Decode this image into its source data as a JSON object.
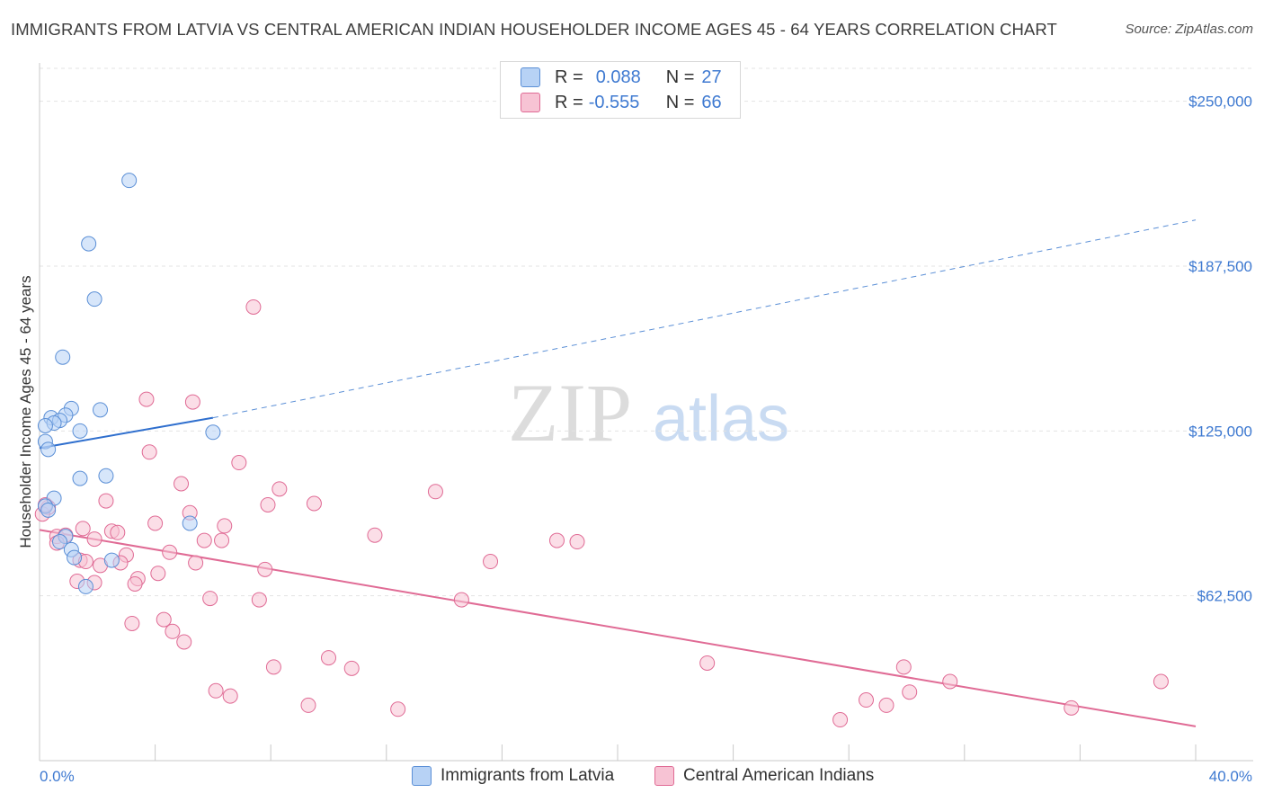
{
  "title": "IMMIGRANTS FROM LATVIA VS CENTRAL AMERICAN INDIAN HOUSEHOLDER INCOME AGES 45 - 64 YEARS CORRELATION CHART",
  "source": "Source: ZipAtlas.com",
  "watermark": {
    "zip": "ZIP",
    "atlas": "atlas"
  },
  "colors": {
    "blue": "#5b8fd6",
    "blue_fill": "#b7d2f5",
    "pink": "#e06b95",
    "pink_fill": "#f7c3d4",
    "axis_label": "#3f7ad1"
  },
  "legend_top": {
    "rows": [
      {
        "r_label": "R =",
        "r_value": "0.088",
        "n_label": "N =",
        "n_value": "27"
      },
      {
        "r_label": "R =",
        "r_value": "-0.555",
        "n_label": "N =",
        "n_value": "66"
      }
    ]
  },
  "legend_bottom": {
    "series1": "Immigrants from Latvia",
    "series2": "Central American Indians"
  },
  "chart_data": {
    "type": "scatter",
    "title": "IMMIGRANTS FROM LATVIA VS CENTRAL AMERICAN INDIAN HOUSEHOLDER INCOME AGES 45 - 64 YEARS CORRELATION CHART",
    "xlabel": "",
    "ylabel": "Householder Income Ages 45 - 64 years",
    "xlim": [
      0,
      40
    ],
    "ylim": [
      0,
      262500
    ],
    "x_tick_labels": [
      "0.0%",
      "40.0%"
    ],
    "y_ticks": [
      62500,
      125000,
      187500,
      250000
    ],
    "y_tick_labels": [
      "$62,500",
      "$125,000",
      "$187,500",
      "$250,000"
    ],
    "grid": true,
    "series": [
      {
        "name": "Immigrants from Latvia",
        "color": "#5b8fd6",
        "trend": {
          "x0": 0,
          "y0": 118500,
          "x1": 6,
          "y1": 130000,
          "x_dash_end": 40,
          "y_dash_end": 205000
        },
        "points": [
          {
            "x": 3.1,
            "y": 220000
          },
          {
            "x": 1.7,
            "y": 196000
          },
          {
            "x": 1.9,
            "y": 175000
          },
          {
            "x": 0.8,
            "y": 153000
          },
          {
            "x": 2.1,
            "y": 133000
          },
          {
            "x": 1.1,
            "y": 133500
          },
          {
            "x": 0.4,
            "y": 130000
          },
          {
            "x": 0.9,
            "y": 131000
          },
          {
            "x": 0.7,
            "y": 129000
          },
          {
            "x": 0.5,
            "y": 128000
          },
          {
            "x": 0.2,
            "y": 127000
          },
          {
            "x": 1.4,
            "y": 125000
          },
          {
            "x": 6.0,
            "y": 124500
          },
          {
            "x": 0.2,
            "y": 121000
          },
          {
            "x": 0.3,
            "y": 118000
          },
          {
            "x": 1.4,
            "y": 107000
          },
          {
            "x": 2.3,
            "y": 108000
          },
          {
            "x": 0.5,
            "y": 99500
          },
          {
            "x": 0.2,
            "y": 96500
          },
          {
            "x": 5.2,
            "y": 90000
          },
          {
            "x": 0.9,
            "y": 85000
          },
          {
            "x": 0.7,
            "y": 83000
          },
          {
            "x": 1.1,
            "y": 80000
          },
          {
            "x": 1.2,
            "y": 77000
          },
          {
            "x": 2.5,
            "y": 76000
          },
          {
            "x": 1.6,
            "y": 66000
          },
          {
            "x": 0.3,
            "y": 95000
          }
        ]
      },
      {
        "name": "Central American Indians",
        "color": "#e06b95",
        "trend": {
          "x0": 0,
          "y0": 87500,
          "x1": 40,
          "y1": 13000
        },
        "points": [
          {
            "x": 7.4,
            "y": 172000
          },
          {
            "x": 3.7,
            "y": 137000
          },
          {
            "x": 5.3,
            "y": 136000
          },
          {
            "x": 3.8,
            "y": 117000
          },
          {
            "x": 6.9,
            "y": 113000
          },
          {
            "x": 4.9,
            "y": 105000
          },
          {
            "x": 8.3,
            "y": 103000
          },
          {
            "x": 13.7,
            "y": 102000
          },
          {
            "x": 2.3,
            "y": 98500
          },
          {
            "x": 7.9,
            "y": 97000
          },
          {
            "x": 9.5,
            "y": 97500
          },
          {
            "x": 0.3,
            "y": 96000
          },
          {
            "x": 5.2,
            "y": 94000
          },
          {
            "x": 0.1,
            "y": 93500
          },
          {
            "x": 4.0,
            "y": 90000
          },
          {
            "x": 6.4,
            "y": 89000
          },
          {
            "x": 1.5,
            "y": 88000
          },
          {
            "x": 2.5,
            "y": 87000
          },
          {
            "x": 2.7,
            "y": 86500
          },
          {
            "x": 11.6,
            "y": 85500
          },
          {
            "x": 0.6,
            "y": 85000
          },
          {
            "x": 0.9,
            "y": 85500
          },
          {
            "x": 1.9,
            "y": 84000
          },
          {
            "x": 5.7,
            "y": 83500
          },
          {
            "x": 6.3,
            "y": 83500
          },
          {
            "x": 17.9,
            "y": 83500
          },
          {
            "x": 18.6,
            "y": 83000
          },
          {
            "x": 0.6,
            "y": 82500
          },
          {
            "x": 4.5,
            "y": 79000
          },
          {
            "x": 3.0,
            "y": 78000
          },
          {
            "x": 1.4,
            "y": 76000
          },
          {
            "x": 1.6,
            "y": 75500
          },
          {
            "x": 2.8,
            "y": 75000
          },
          {
            "x": 5.4,
            "y": 75000
          },
          {
            "x": 2.1,
            "y": 74000
          },
          {
            "x": 15.6,
            "y": 75500
          },
          {
            "x": 7.8,
            "y": 72500
          },
          {
            "x": 4.1,
            "y": 71000
          },
          {
            "x": 3.4,
            "y": 69000
          },
          {
            "x": 1.3,
            "y": 68000
          },
          {
            "x": 3.3,
            "y": 67000
          },
          {
            "x": 1.9,
            "y": 67500
          },
          {
            "x": 5.9,
            "y": 61500
          },
          {
            "x": 7.6,
            "y": 61000
          },
          {
            "x": 14.6,
            "y": 61000
          },
          {
            "x": 4.3,
            "y": 53500
          },
          {
            "x": 3.2,
            "y": 52000
          },
          {
            "x": 4.6,
            "y": 49000
          },
          {
            "x": 5.0,
            "y": 45000
          },
          {
            "x": 10.0,
            "y": 39000
          },
          {
            "x": 23.1,
            "y": 37000
          },
          {
            "x": 8.1,
            "y": 35500
          },
          {
            "x": 10.8,
            "y": 35000
          },
          {
            "x": 29.9,
            "y": 35500
          },
          {
            "x": 31.5,
            "y": 30000
          },
          {
            "x": 38.8,
            "y": 30000
          },
          {
            "x": 6.1,
            "y": 26500
          },
          {
            "x": 6.6,
            "y": 24500
          },
          {
            "x": 30.1,
            "y": 26000
          },
          {
            "x": 28.6,
            "y": 23000
          },
          {
            "x": 9.3,
            "y": 21000
          },
          {
            "x": 29.3,
            "y": 21000
          },
          {
            "x": 12.4,
            "y": 19500
          },
          {
            "x": 35.7,
            "y": 20000
          },
          {
            "x": 27.7,
            "y": 15500
          },
          {
            "x": 0.2,
            "y": 97000
          }
        ]
      }
    ]
  }
}
